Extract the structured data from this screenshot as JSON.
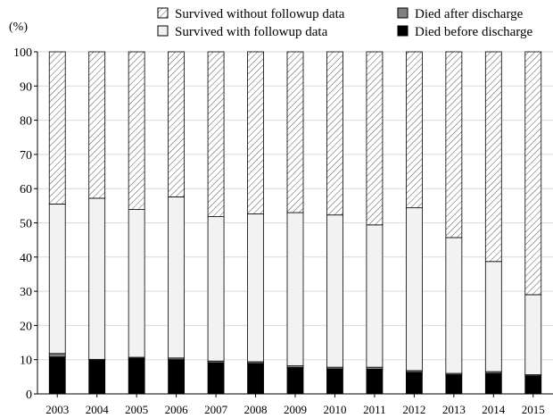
{
  "chart_data": {
    "type": "bar",
    "stacked": true,
    "ylabel": "(%)",
    "xlabel": "",
    "ylim": [
      0,
      100
    ],
    "yticks": [
      0,
      10,
      20,
      30,
      40,
      50,
      60,
      70,
      80,
      90,
      100
    ],
    "grid": true,
    "legend_position": "top-right",
    "categories": [
      "2003",
      "2004",
      "2005",
      "2006",
      "2007",
      "2008",
      "2009",
      "2010",
      "2011",
      "2012",
      "2013",
      "2014",
      "2015"
    ],
    "series": [
      {
        "name": "Died before discharge",
        "fill": "solid",
        "color": "#000000",
        "values": [
          10.8,
          9.8,
          10.4,
          10.0,
          9.1,
          8.9,
          7.7,
          7.3,
          7.2,
          6.3,
          5.6,
          6.0,
          5.3
        ]
      },
      {
        "name": "Died after discharge",
        "fill": "solid",
        "color": "#808080",
        "values": [
          1.0,
          0.3,
          0.3,
          0.5,
          0.5,
          0.5,
          0.5,
          0.5,
          0.6,
          0.5,
          0.4,
          0.5,
          0.3
        ]
      },
      {
        "name": "Survived with followup data",
        "fill": "solid",
        "color": "#f2f2f2",
        "values": [
          43.7,
          47.1,
          43.2,
          47.1,
          42.2,
          43.2,
          44.8,
          44.5,
          41.6,
          47.6,
          39.7,
          32.2,
          23.4
        ]
      },
      {
        "name": "Survived without followup data",
        "fill": "hatch",
        "color": "#ffffff",
        "values": [
          44.5,
          42.8,
          46.1,
          42.4,
          48.2,
          47.4,
          47.0,
          47.7,
          50.6,
          45.6,
          54.3,
          61.3,
          71.0
        ]
      }
    ],
    "legend_order": [
      "Survived without followup data",
      "Died after discharge",
      "Survived with followup data",
      "Died before discharge"
    ]
  }
}
